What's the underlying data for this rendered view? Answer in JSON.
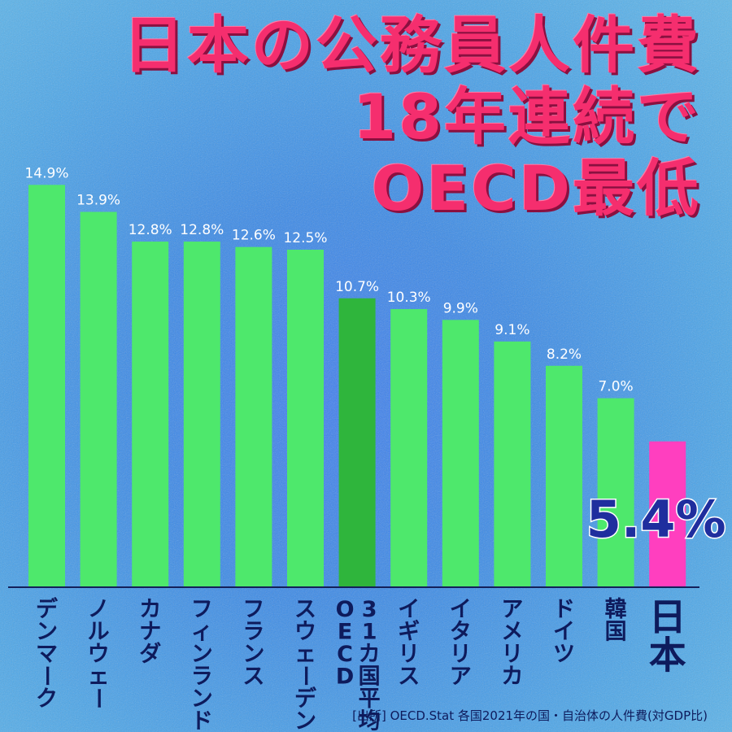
{
  "title_lines": [
    "日本の公務員人件費",
    "18年連続で",
    "OECD最低"
  ],
  "source": "[出所] OECD.Stat 各国2021年の国・自治体の人件費(対GDP比)",
  "highlight_value": "5.4%",
  "colors": {
    "bar": "#4ee86c",
    "bar_average": "#2fb53c",
    "bar_highlight": "#ff3fbf",
    "title": "#f52e6e",
    "axis": "#14205a"
  },
  "chart_data": {
    "type": "bar",
    "title": "日本の公務員人件費 18年連続で OECD最低",
    "xlabel": "",
    "ylabel": "",
    "ylim": [
      0,
      16
    ],
    "grid": false,
    "legend": "none",
    "categories": [
      "デンマーク",
      "ノルウェー",
      "カナダ",
      "フィンランド",
      "フランス",
      "スウェーデン",
      "OECD31カ国平均",
      "イギリス",
      "イタリア",
      "アメリカ",
      "ドイツ",
      "韓国",
      "日本"
    ],
    "category_label_lines": [
      [
        "デンマーク"
      ],
      [
        "ノルウェー"
      ],
      [
        "カナダ"
      ],
      [
        "フィンランド"
      ],
      [
        "フランス"
      ],
      [
        "スウェーデン"
      ],
      [
        "31カ国平均",
        "OECD"
      ],
      [
        "イギリス"
      ],
      [
        "イタリア"
      ],
      [
        "アメリカ"
      ],
      [
        "ドイツ"
      ],
      [
        "韓国"
      ],
      [
        "日本"
      ]
    ],
    "values": [
      14.9,
      13.9,
      12.8,
      12.8,
      12.6,
      12.5,
      10.7,
      10.3,
      9.9,
      9.1,
      8.2,
      7.0,
      5.4
    ],
    "data_labels": [
      "14.9%",
      "13.9%",
      "12.8%",
      "12.8%",
      "12.6%",
      "12.5%",
      "10.7%",
      "10.3%",
      "9.9%",
      "9.1%",
      "8.2%",
      "7.0%",
      ""
    ],
    "average_index": 6,
    "highlight_index": 12
  }
}
